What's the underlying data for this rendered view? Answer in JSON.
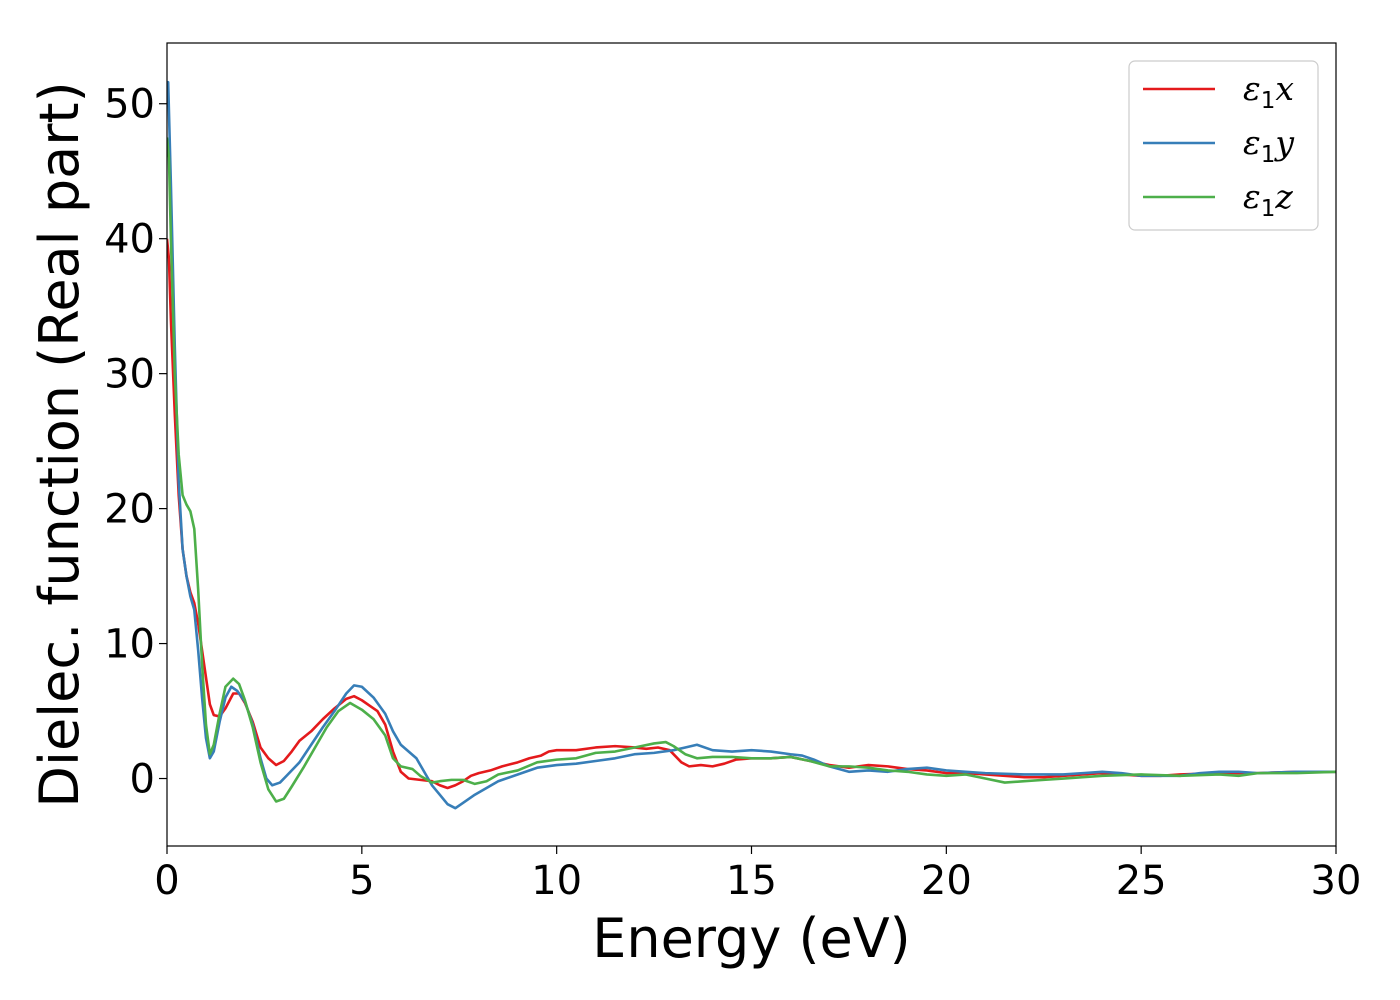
{
  "chart_data": {
    "type": "line",
    "title": "",
    "xlabel": "Energy (eV)",
    "ylabel": "Dielec. function (Real part)",
    "xlim": [
      0,
      30
    ],
    "ylim": [
      -5,
      54.5
    ],
    "xticks": [
      "0",
      "5",
      "10",
      "15",
      "20",
      "25",
      "30"
    ],
    "yticks": [
      "0",
      "10",
      "20",
      "30",
      "40",
      "50"
    ],
    "grid": false,
    "legend_position": "top-right",
    "series": [
      {
        "name": "ε1x",
        "symbol": "ε",
        "sub": "1",
        "axis": "x",
        "color": "#e41a1c",
        "points": [
          [
            0,
            40
          ],
          [
            0.05,
            38.5
          ],
          [
            0.1,
            34
          ],
          [
            0.2,
            27
          ],
          [
            0.3,
            21
          ],
          [
            0.4,
            17
          ],
          [
            0.5,
            15
          ],
          [
            0.6,
            13.8
          ],
          [
            0.7,
            13
          ],
          [
            0.8,
            11.5
          ],
          [
            0.9,
            9.5
          ],
          [
            1,
            7.5
          ],
          [
            1.1,
            5.5
          ],
          [
            1.2,
            4.7
          ],
          [
            1.35,
            4.6
          ],
          [
            1.5,
            5.2
          ],
          [
            1.7,
            6.3
          ],
          [
            1.85,
            6.3
          ],
          [
            2,
            5.6
          ],
          [
            2.2,
            4.2
          ],
          [
            2.4,
            2.3
          ],
          [
            2.6,
            1.5
          ],
          [
            2.8,
            1
          ],
          [
            3,
            1.3
          ],
          [
            3.2,
            2
          ],
          [
            3.4,
            2.8
          ],
          [
            3.7,
            3.5
          ],
          [
            4,
            4.4
          ],
          [
            4.3,
            5.2
          ],
          [
            4.6,
            5.9
          ],
          [
            4.8,
            6.1
          ],
          [
            5,
            5.8
          ],
          [
            5.2,
            5.4
          ],
          [
            5.4,
            5
          ],
          [
            5.6,
            4
          ],
          [
            5.8,
            2
          ],
          [
            6,
            0.5
          ],
          [
            6.2,
            0
          ],
          [
            6.5,
            -0.1
          ],
          [
            6.8,
            -0.2
          ],
          [
            7,
            -0.5
          ],
          [
            7.2,
            -0.7
          ],
          [
            7.4,
            -0.5
          ],
          [
            7.6,
            -0.2
          ],
          [
            7.8,
            0.2
          ],
          [
            8,
            0.4
          ],
          [
            8.3,
            0.6
          ],
          [
            8.6,
            0.9
          ],
          [
            9,
            1.2
          ],
          [
            9.3,
            1.5
          ],
          [
            9.6,
            1.7
          ],
          [
            9.8,
            2
          ],
          [
            10,
            2.1
          ],
          [
            10.5,
            2.1
          ],
          [
            11,
            2.3
          ],
          [
            11.5,
            2.4
          ],
          [
            12,
            2.3
          ],
          [
            12.3,
            2.2
          ],
          [
            12.6,
            2.3
          ],
          [
            12.9,
            2.1
          ],
          [
            13.2,
            1.2
          ],
          [
            13.4,
            0.9
          ],
          [
            13.7,
            1
          ],
          [
            14,
            0.9
          ],
          [
            14.3,
            1.1
          ],
          [
            14.6,
            1.4
          ],
          [
            15,
            1.5
          ],
          [
            15.5,
            1.5
          ],
          [
            16,
            1.6
          ],
          [
            16.5,
            1.3
          ],
          [
            17,
            1
          ],
          [
            17.5,
            0.8
          ],
          [
            18,
            1
          ],
          [
            18.5,
            0.9
          ],
          [
            19,
            0.7
          ],
          [
            19.5,
            0.6
          ],
          [
            20,
            0.4
          ],
          [
            20.5,
            0.4
          ],
          [
            21,
            0.3
          ],
          [
            21.5,
            0.2
          ],
          [
            22,
            0.1
          ],
          [
            22.5,
            0.1
          ],
          [
            23,
            0.2
          ],
          [
            23.5,
            0.3
          ],
          [
            24,
            0.4
          ],
          [
            24.5,
            0.3
          ],
          [
            25,
            0.2
          ],
          [
            25.5,
            0.2
          ],
          [
            26,
            0.3
          ],
          [
            27,
            0.4
          ],
          [
            28,
            0.4
          ],
          [
            29,
            0.5
          ],
          [
            30,
            0.5
          ]
        ]
      },
      {
        "name": "ε1y",
        "symbol": "ε",
        "sub": "1",
        "axis": "y",
        "color": "#377eb8",
        "points": [
          [
            0,
            50
          ],
          [
            0.03,
            51.6
          ],
          [
            0.1,
            44
          ],
          [
            0.2,
            32
          ],
          [
            0.3,
            22
          ],
          [
            0.4,
            17
          ],
          [
            0.5,
            15
          ],
          [
            0.6,
            13.5
          ],
          [
            0.7,
            12.5
          ],
          [
            0.8,
            9.5
          ],
          [
            0.9,
            6
          ],
          [
            1,
            3
          ],
          [
            1.1,
            1.5
          ],
          [
            1.2,
            2
          ],
          [
            1.35,
            4.2
          ],
          [
            1.5,
            6
          ],
          [
            1.65,
            6.8
          ],
          [
            1.8,
            6.5
          ],
          [
            2,
            5.7
          ],
          [
            2.2,
            4
          ],
          [
            2.4,
            1.5
          ],
          [
            2.55,
            0
          ],
          [
            2.7,
            -0.5
          ],
          [
            2.9,
            -0.3
          ],
          [
            3.1,
            0.3
          ],
          [
            3.4,
            1.2
          ],
          [
            3.7,
            2.5
          ],
          [
            4,
            3.8
          ],
          [
            4.3,
            5
          ],
          [
            4.6,
            6.3
          ],
          [
            4.8,
            6.9
          ],
          [
            5,
            6.8
          ],
          [
            5.3,
            6
          ],
          [
            5.6,
            4.8
          ],
          [
            5.8,
            3.5
          ],
          [
            6,
            2.5
          ],
          [
            6.2,
            2
          ],
          [
            6.4,
            1.5
          ],
          [
            6.6,
            0.5
          ],
          [
            6.8,
            -0.5
          ],
          [
            7,
            -1.2
          ],
          [
            7.2,
            -1.9
          ],
          [
            7.4,
            -2.2
          ],
          [
            7.6,
            -1.8
          ],
          [
            7.9,
            -1.2
          ],
          [
            8.2,
            -0.7
          ],
          [
            8.5,
            -0.2
          ],
          [
            9,
            0.3
          ],
          [
            9.5,
            0.8
          ],
          [
            10,
            1
          ],
          [
            10.5,
            1.1
          ],
          [
            11,
            1.3
          ],
          [
            11.5,
            1.5
          ],
          [
            12,
            1.8
          ],
          [
            12.5,
            1.9
          ],
          [
            13,
            2.1
          ],
          [
            13.3,
            2.3
          ],
          [
            13.6,
            2.5
          ],
          [
            14,
            2.1
          ],
          [
            14.5,
            2
          ],
          [
            15,
            2.1
          ],
          [
            15.5,
            2
          ],
          [
            16,
            1.8
          ],
          [
            16.3,
            1.7
          ],
          [
            16.6,
            1.4
          ],
          [
            17,
            0.9
          ],
          [
            17.5,
            0.5
          ],
          [
            18,
            0.6
          ],
          [
            18.5,
            0.5
          ],
          [
            19,
            0.7
          ],
          [
            19.5,
            0.8
          ],
          [
            20,
            0.6
          ],
          [
            20.5,
            0.5
          ],
          [
            21,
            0.4
          ],
          [
            22,
            0.3
          ],
          [
            22.5,
            0.3
          ],
          [
            23,
            0.3
          ],
          [
            23.5,
            0.4
          ],
          [
            24,
            0.5
          ],
          [
            24.5,
            0.4
          ],
          [
            25,
            0.2
          ],
          [
            25.5,
            0.2
          ],
          [
            26,
            0.2
          ],
          [
            26.5,
            0.4
          ],
          [
            27,
            0.5
          ],
          [
            27.5,
            0.5
          ],
          [
            28,
            0.4
          ],
          [
            29,
            0.5
          ],
          [
            30,
            0.5
          ]
        ]
      },
      {
        "name": "ε1z",
        "symbol": "ε",
        "sub": "1",
        "axis": "z",
        "color": "#4daf4a",
        "points": [
          [
            0,
            47.5
          ],
          [
            0.05,
            46
          ],
          [
            0.1,
            40
          ],
          [
            0.2,
            30
          ],
          [
            0.3,
            24
          ],
          [
            0.4,
            21
          ],
          [
            0.5,
            20.3
          ],
          [
            0.6,
            19.8
          ],
          [
            0.7,
            18.5
          ],
          [
            0.8,
            14
          ],
          [
            0.9,
            8.5
          ],
          [
            1,
            4
          ],
          [
            1.1,
            1.8
          ],
          [
            1.2,
            2.5
          ],
          [
            1.35,
            4.8
          ],
          [
            1.5,
            6.8
          ],
          [
            1.7,
            7.4
          ],
          [
            1.85,
            7
          ],
          [
            2,
            5.8
          ],
          [
            2.2,
            3.8
          ],
          [
            2.4,
            1.2
          ],
          [
            2.6,
            -0.8
          ],
          [
            2.8,
            -1.7
          ],
          [
            3,
            -1.5
          ],
          [
            3.2,
            -0.6
          ],
          [
            3.5,
            0.8
          ],
          [
            3.8,
            2.3
          ],
          [
            4.1,
            3.8
          ],
          [
            4.4,
            5
          ],
          [
            4.7,
            5.6
          ],
          [
            5,
            5.1
          ],
          [
            5.3,
            4.4
          ],
          [
            5.6,
            3.2
          ],
          [
            5.8,
            1.5
          ],
          [
            6,
            0.9
          ],
          [
            6.3,
            0.7
          ],
          [
            6.5,
            0.2
          ],
          [
            6.8,
            -0.3
          ],
          [
            7,
            -0.2
          ],
          [
            7.3,
            -0.1
          ],
          [
            7.6,
            -0.1
          ],
          [
            7.9,
            -0.4
          ],
          [
            8.2,
            -0.2
          ],
          [
            8.5,
            0.3
          ],
          [
            9,
            0.6
          ],
          [
            9.5,
            1.2
          ],
          [
            10,
            1.4
          ],
          [
            10.5,
            1.5
          ],
          [
            11,
            1.9
          ],
          [
            11.5,
            2
          ],
          [
            12,
            2.3
          ],
          [
            12.5,
            2.6
          ],
          [
            12.8,
            2.7
          ],
          [
            13,
            2.4
          ],
          [
            13.3,
            1.8
          ],
          [
            13.6,
            1.5
          ],
          [
            14,
            1.6
          ],
          [
            14.5,
            1.6
          ],
          [
            15,
            1.5
          ],
          [
            15.5,
            1.5
          ],
          [
            16,
            1.6
          ],
          [
            16.5,
            1.3
          ],
          [
            17,
            0.9
          ],
          [
            17.5,
            0.9
          ],
          [
            18,
            0.8
          ],
          [
            18.5,
            0.6
          ],
          [
            19,
            0.5
          ],
          [
            19.5,
            0.3
          ],
          [
            20,
            0.2
          ],
          [
            20.5,
            0.3
          ],
          [
            21,
            0
          ],
          [
            21.5,
            -0.3
          ],
          [
            22,
            -0.2
          ],
          [
            22.5,
            -0.1
          ],
          [
            23,
            0
          ],
          [
            24,
            0.2
          ],
          [
            25,
            0.3
          ],
          [
            26,
            0.2
          ],
          [
            27,
            0.3
          ],
          [
            27.5,
            0.2
          ],
          [
            28,
            0.4
          ],
          [
            29,
            0.4
          ],
          [
            30,
            0.5
          ]
        ]
      }
    ]
  }
}
